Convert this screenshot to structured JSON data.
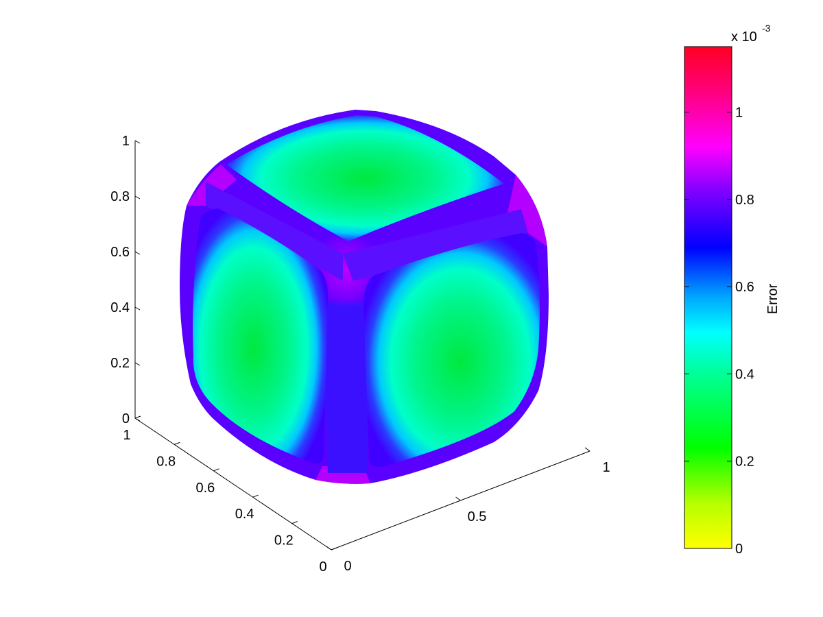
{
  "chart_data": {
    "type": "heatmap",
    "description_kind": "3d-surface",
    "x_axis": {
      "ticks": [
        "0",
        "0.5",
        "1"
      ],
      "values": [
        0,
        0.5,
        1
      ],
      "range": [
        0,
        1
      ]
    },
    "y_axis": {
      "ticks": [
        "0",
        "0.2",
        "0.4",
        "0.6",
        "0.8",
        "1"
      ],
      "values": [
        0,
        0.2,
        0.4,
        0.6,
        0.8,
        1
      ],
      "range": [
        0,
        1
      ]
    },
    "z_axis": {
      "ticks": [
        "0",
        "0.2",
        "0.4",
        "0.6",
        "0.8",
        "1"
      ],
      "values": [
        0,
        0.2,
        0.4,
        0.6,
        0.8,
        1
      ],
      "range": [
        0,
        1
      ]
    },
    "colorbar": {
      "label": "Error",
      "exponent_base": "x 10",
      "exponent_power": "-3",
      "ticks": [
        "0",
        "0.2",
        "0.4",
        "0.6",
        "0.8",
        "1"
      ],
      "values": [
        0,
        0.2,
        0.4,
        0.6,
        0.8,
        1
      ],
      "range": [
        0,
        1.15
      ],
      "colormap": [
        "#ffff00",
        "#00ff00",
        "#00ffff",
        "#0000ff",
        "#ff00ff",
        "#ff0000"
      ]
    },
    "surface": {
      "face_center_error": 0.3,
      "face_mid_error": 0.42,
      "face_rim_error": 0.6,
      "edge_error": 0.75,
      "corner_error": 0.9
    },
    "grid": false
  }
}
